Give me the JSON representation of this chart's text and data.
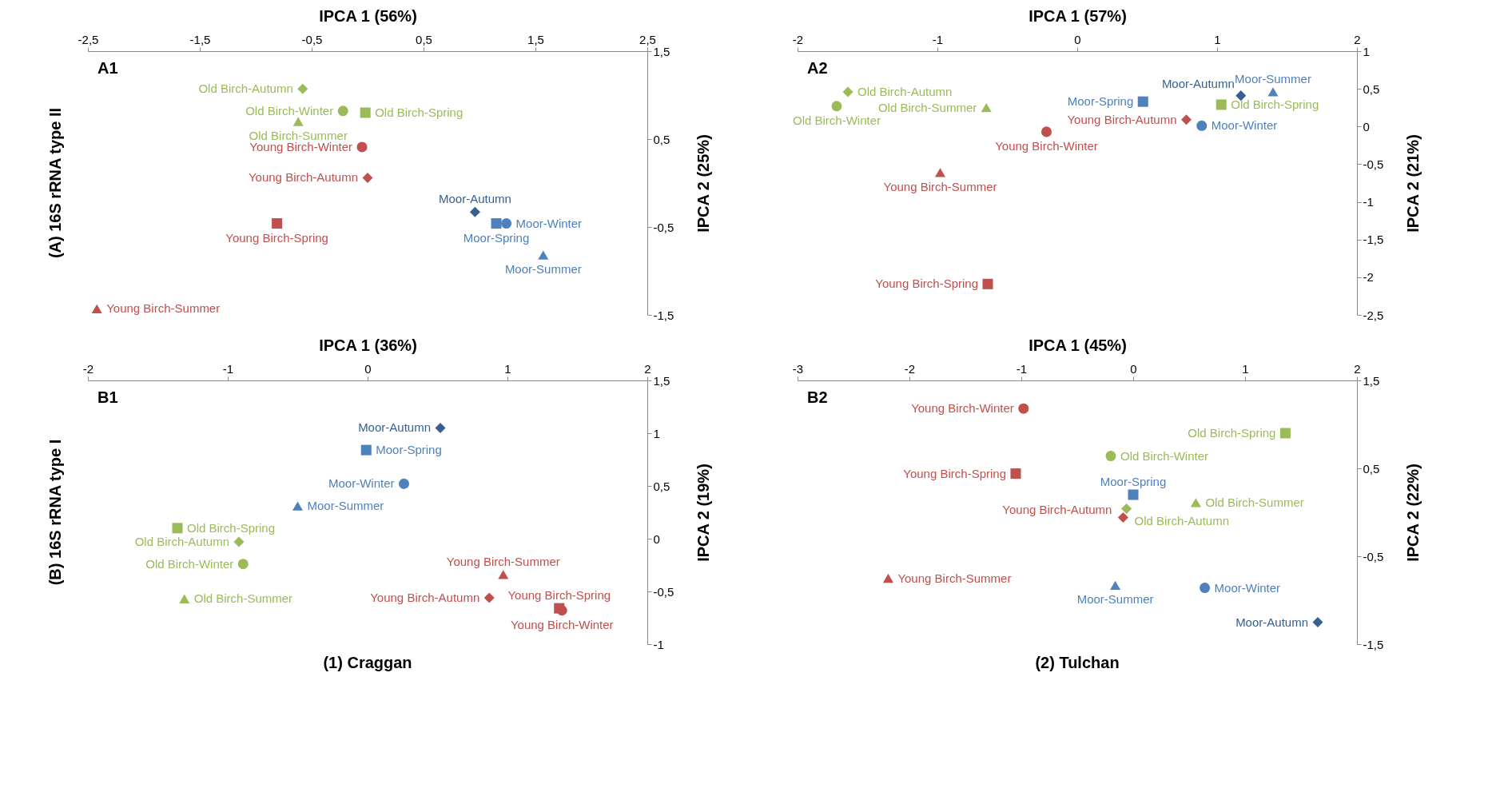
{
  "chart_data": [
    {
      "type": "scatter",
      "xlabel": "IPCA 1 (56%)",
      "ylabel": "IPCA 2 (25%)",
      "xlim": [
        -2.5,
        2.5
      ],
      "xticks": [
        {
          "value": -2.5,
          "label": "-2,5"
        },
        {
          "value": -1.5,
          "label": "-1,5"
        },
        {
          "value": -0.5,
          "label": "-0,5"
        },
        {
          "value": 0.5,
          "label": "0,5"
        },
        {
          "value": 1.5,
          "label": "1,5"
        },
        {
          "value": 2.5,
          "label": "2,5"
        }
      ],
      "ylim": [
        -1.5,
        1.5
      ],
      "yticks": [
        {
          "value": -1.5,
          "label": "-1,5"
        },
        {
          "value": -0.5,
          "label": "-0,5"
        },
        {
          "value": 0.5,
          "label": "0,5"
        },
        {
          "value": 1.5,
          "label": "1,5"
        }
      ],
      "annotations": [
        "A1",
        "(A) 16S rRNA type II"
      ],
      "series": [
        {
          "name": "Moor-Autumn",
          "color": "#376092",
          "marker": "diamond",
          "x": [
            0.96
          ],
          "values": [
            -0.33
          ]
        },
        {
          "name": "Moor-Spring",
          "color": "#4f81bd",
          "marker": "square",
          "x": [
            1.15
          ],
          "values": [
            -0.46
          ]
        },
        {
          "name": "Moor-Summer",
          "color": "#4f81bd",
          "marker": "triangle",
          "x": [
            1.57
          ],
          "values": [
            -0.82
          ]
        },
        {
          "name": "Moor-Winter",
          "color": "#4f81bd",
          "marker": "circle",
          "x": [
            1.24
          ],
          "values": [
            -0.46
          ]
        },
        {
          "name": "Old Birch-Autumn",
          "color": "#9bbb59",
          "marker": "diamond",
          "x": [
            -0.58
          ],
          "values": [
            1.07
          ]
        },
        {
          "name": "Old Birch-Spring",
          "color": "#9bbb59",
          "marker": "square",
          "x": [
            -0.02
          ],
          "values": [
            0.8
          ]
        },
        {
          "name": "Old Birch-Summer",
          "color": "#9bbb59",
          "marker": "triangle",
          "x": [
            -0.62
          ],
          "values": [
            0.7
          ]
        },
        {
          "name": "Old Birch-Winter",
          "color": "#9bbb59",
          "marker": "circle",
          "x": [
            -0.22
          ],
          "values": [
            0.82
          ]
        },
        {
          "name": "Young Birch-Autumn",
          "color": "#c0504d",
          "marker": "diamond",
          "x": [
            0.0
          ],
          "values": [
            0.06
          ]
        },
        {
          "name": "Young Birch-Spring",
          "color": "#c0504d",
          "marker": "square",
          "x": [
            -0.81
          ],
          "values": [
            -0.46
          ]
        },
        {
          "name": "Young Birch-Summer",
          "color": "#c0504d",
          "marker": "triangle",
          "x": [
            -2.42
          ],
          "values": [
            -1.43
          ]
        },
        {
          "name": "Young Birch-Winter",
          "color": "#c0504d",
          "marker": "circle",
          "x": [
            -0.05
          ],
          "values": [
            0.41
          ]
        }
      ]
    },
    {
      "type": "scatter",
      "xlabel": "IPCA 1 (57%)",
      "ylabel": "IPCA 2 (21%)",
      "xlim": [
        -2,
        2
      ],
      "xticks": [
        -2,
        -1,
        0,
        1,
        2
      ],
      "ylim": [
        -2.5,
        1
      ],
      "yticks": [
        {
          "value": -2.5,
          "label": "-2,5"
        },
        -2,
        {
          "value": -1.5,
          "label": "-1,5"
        },
        -1,
        {
          "value": -0.5,
          "label": "-0,5"
        },
        0,
        {
          "value": 0.5,
          "label": "0,5"
        },
        1
      ],
      "annotations": [
        "A2"
      ],
      "series": [
        {
          "name": "Moor-Autumn",
          "color": "#376092",
          "marker": "diamond",
          "x": [
            1.17
          ],
          "values": [
            0.41
          ]
        },
        {
          "name": "Moor-Spring",
          "color": "#4f81bd",
          "marker": "square",
          "x": [
            0.47
          ],
          "values": [
            0.33
          ]
        },
        {
          "name": "Moor-Summer",
          "color": "#4f81bd",
          "marker": "triangle",
          "x": [
            1.4
          ],
          "values": [
            0.46
          ]
        },
        {
          "name": "Moor-Winter",
          "color": "#4f81bd",
          "marker": "circle",
          "x": [
            0.89
          ],
          "values": [
            0.01
          ]
        },
        {
          "name": "Old Birch-Autumn",
          "color": "#9bbb59",
          "marker": "diamond",
          "x": [
            -1.64
          ],
          "values": [
            0.46
          ]
        },
        {
          "name": "Old Birch-Spring",
          "color": "#9bbb59",
          "marker": "square",
          "x": [
            1.03
          ],
          "values": [
            0.29
          ]
        },
        {
          "name": "Old Birch-Summer",
          "color": "#9bbb59",
          "marker": "triangle",
          "x": [
            -0.65
          ],
          "values": [
            0.25
          ]
        },
        {
          "name": "Old Birch-Winter",
          "color": "#9bbb59",
          "marker": "circle",
          "x": [
            -1.72
          ],
          "values": [
            0.27
          ]
        },
        {
          "name": "Young Birch-Autumn",
          "color": "#c0504d",
          "marker": "diamond",
          "x": [
            0.78
          ],
          "values": [
            0.09
          ]
        },
        {
          "name": "Young Birch-Spring",
          "color": "#c0504d",
          "marker": "square",
          "x": [
            -0.64
          ],
          "values": [
            -2.09
          ]
        },
        {
          "name": "Young Birch-Summer",
          "color": "#c0504d",
          "marker": "triangle",
          "x": [
            -0.98
          ],
          "values": [
            -0.61
          ]
        },
        {
          "name": "Young Birch-Winter",
          "color": "#c0504d",
          "marker": "circle",
          "x": [
            -0.22
          ],
          "values": [
            -0.07
          ]
        }
      ]
    },
    {
      "type": "scatter",
      "title": "(1) Craggan",
      "xlabel": "IPCA 1 (36%)",
      "ylabel": "IPCA 2 (19%)",
      "xlim": [
        -2,
        2
      ],
      "xticks": [
        -2,
        -1,
        0,
        1,
        2
      ],
      "ylim": [
        -1,
        1.5
      ],
      "yticks": [
        -1,
        {
          "value": -0.5,
          "label": "-0,5"
        },
        0,
        {
          "value": 0.5,
          "label": "0,5"
        },
        1,
        {
          "value": 1.5,
          "label": "1,5"
        }
      ],
      "annotations": [
        "B1",
        "(B) 16S rRNA type I"
      ],
      "series": [
        {
          "name": "Moor-Autumn",
          "color": "#376092",
          "marker": "diamond",
          "x": [
            0.52
          ],
          "values": [
            1.05
          ]
        },
        {
          "name": "Moor-Spring",
          "color": "#4f81bd",
          "marker": "square",
          "x": [
            -0.01
          ],
          "values": [
            0.84
          ]
        },
        {
          "name": "Moor-Summer",
          "color": "#4f81bd",
          "marker": "triangle",
          "x": [
            -0.5
          ],
          "values": [
            0.31
          ]
        },
        {
          "name": "Moor-Winter",
          "color": "#4f81bd",
          "marker": "circle",
          "x": [
            0.26
          ],
          "values": [
            0.52
          ]
        },
        {
          "name": "Old Birch-Autumn",
          "color": "#9bbb59",
          "marker": "diamond",
          "x": [
            -0.92
          ],
          "values": [
            -0.03
          ]
        },
        {
          "name": "Old Birch-Spring",
          "color": "#9bbb59",
          "marker": "square",
          "x": [
            -1.36
          ],
          "values": [
            0.1
          ]
        },
        {
          "name": "Old Birch-Summer",
          "color": "#9bbb59",
          "marker": "triangle",
          "x": [
            -1.31
          ],
          "values": [
            -0.57
          ]
        },
        {
          "name": "Old Birch-Winter",
          "color": "#9bbb59",
          "marker": "circle",
          "x": [
            -0.89
          ],
          "values": [
            -0.24
          ]
        },
        {
          "name": "Young Birch-Autumn",
          "color": "#c0504d",
          "marker": "diamond",
          "x": [
            0.87
          ],
          "values": [
            -0.56
          ]
        },
        {
          "name": "Young Birch-Spring",
          "color": "#c0504d",
          "marker": "square",
          "x": [
            1.37
          ],
          "values": [
            -0.66
          ]
        },
        {
          "name": "Young Birch-Summer",
          "color": "#c0504d",
          "marker": "triangle",
          "x": [
            0.97
          ],
          "values": [
            -0.34
          ]
        },
        {
          "name": "Young Birch-Winter",
          "color": "#c0504d",
          "marker": "circle",
          "x": [
            1.39
          ],
          "values": [
            -0.68
          ]
        }
      ]
    },
    {
      "type": "scatter",
      "title": "(2) Tulchan",
      "xlabel": "IPCA 1 (45%)",
      "ylabel": "IPCA 2 (22%)",
      "xlim": [
        -3,
        2
      ],
      "xticks": [
        -3,
        -2,
        -1,
        0,
        1,
        2
      ],
      "ylim": [
        -1.5,
        1.5
      ],
      "yticks": [
        {
          "value": -1.5,
          "label": "-1,5"
        },
        {
          "value": -0.5,
          "label": "-0,5"
        },
        {
          "value": 0.5,
          "label": "0,5"
        },
        {
          "value": 1.5,
          "label": "1,5"
        }
      ],
      "annotations": [
        "B2"
      ],
      "series": [
        {
          "name": "Moor-Autumn",
          "color": "#376092",
          "marker": "diamond",
          "x": [
            1.65
          ],
          "values": [
            -1.25
          ]
        },
        {
          "name": "Moor-Spring",
          "color": "#4f81bd",
          "marker": "square",
          "x": [
            0.0
          ],
          "values": [
            0.2
          ]
        },
        {
          "name": "Moor-Summer",
          "color": "#4f81bd",
          "marker": "triangle",
          "x": [
            -0.16
          ],
          "values": [
            -0.83
          ]
        },
        {
          "name": "Moor-Winter",
          "color": "#4f81bd",
          "marker": "circle",
          "x": [
            0.64
          ],
          "values": [
            -0.86
          ]
        },
        {
          "name": "Old Birch-Autumn",
          "color": "#9bbb59",
          "marker": "diamond",
          "x": [
            -0.06
          ],
          "values": [
            0.04
          ]
        },
        {
          "name": "Old Birch-Spring",
          "color": "#9bbb59",
          "marker": "square",
          "x": [
            1.36
          ],
          "values": [
            0.9
          ]
        },
        {
          "name": "Old Birch-Summer",
          "color": "#9bbb59",
          "marker": "triangle",
          "x": [
            0.56
          ],
          "values": [
            0.11
          ]
        },
        {
          "name": "Old Birch-Winter",
          "color": "#9bbb59",
          "marker": "circle",
          "x": [
            -0.2
          ],
          "values": [
            0.64
          ]
        },
        {
          "name": "Young Birch-Autumn",
          "color": "#c0504d",
          "marker": "diamond",
          "x": [
            -0.09
          ],
          "values": [
            -0.06
          ]
        },
        {
          "name": "Young Birch-Spring",
          "color": "#c0504d",
          "marker": "square",
          "x": [
            -1.05
          ],
          "values": [
            0.44
          ]
        },
        {
          "name": "Young Birch-Summer",
          "color": "#c0504d",
          "marker": "triangle",
          "x": [
            -2.19
          ],
          "values": [
            -0.75
          ]
        },
        {
          "name": "Young Birch-Winter",
          "color": "#c0504d",
          "marker": "circle",
          "x": [
            -0.98
          ],
          "values": [
            1.18
          ]
        }
      ]
    }
  ]
}
